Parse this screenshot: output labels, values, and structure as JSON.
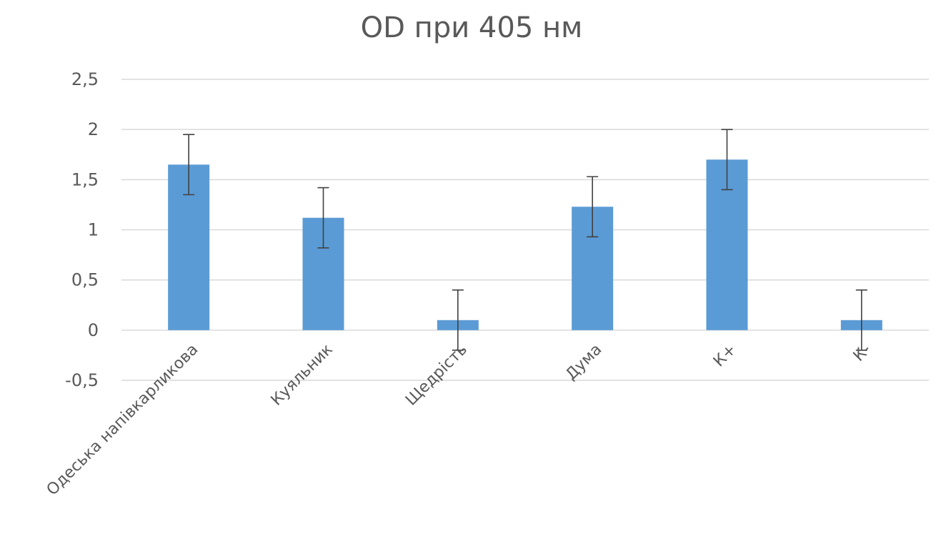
{
  "chart_data": {
    "type": "bar",
    "title": "OD при 405 нм",
    "xlabel": "",
    "ylabel": "",
    "categories": [
      "Одеська напівкарликова",
      "Куяльник",
      "Щедрість",
      "Дума",
      "К+",
      "К-"
    ],
    "series": [
      {
        "values": [
          1.65,
          1.12,
          0.1,
          1.23,
          1.7,
          0.1
        ],
        "error": [
          0.3,
          0.3,
          0.3,
          0.3,
          0.3,
          0.3
        ]
      }
    ],
    "ylim": [
      -0.5,
      2.5
    ],
    "yticks": [
      2.5,
      2,
      1.5,
      1,
      0.5,
      0,
      -0.5
    ],
    "ytick_labels": [
      "2,5",
      "2",
      "1,5",
      "1",
      "0,5",
      "0",
      "-0,5"
    ],
    "grid": true,
    "legend": "none",
    "colors": {
      "bar": "#5b9bd5",
      "error_bar": "#404040",
      "gridline": "#d9d9d9",
      "text": "#595959"
    }
  }
}
